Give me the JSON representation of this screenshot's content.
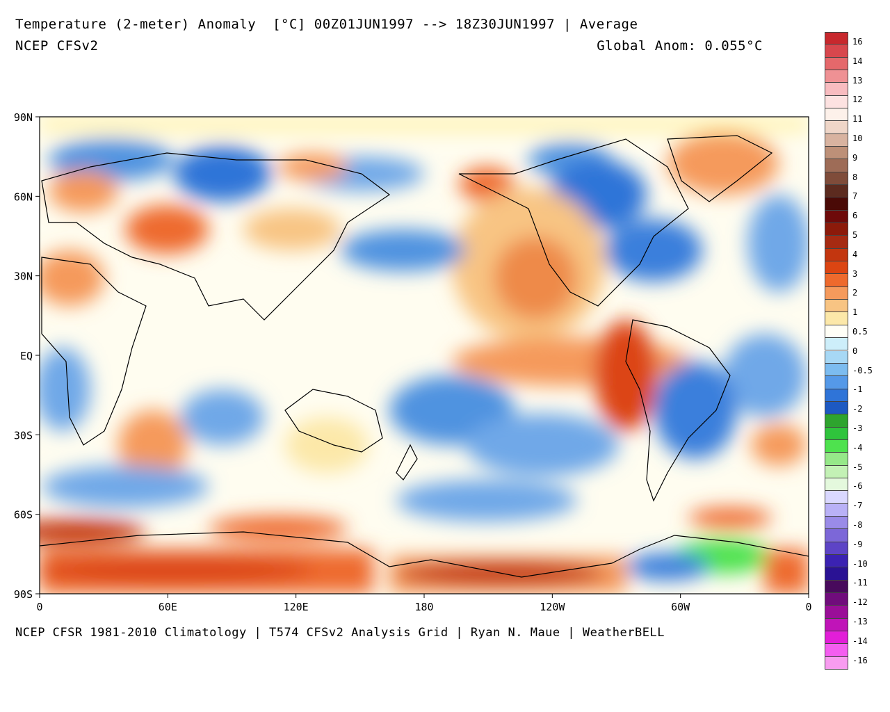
{
  "header": {
    "title": "Temperature (2-meter) Anomaly  [°C] 00Z01JUN1997 --> 18Z30JUN1997 | Average",
    "subtitle": "NCEP CFSv2",
    "global_anom": "Global Anom: 0.055°C"
  },
  "footer": {
    "text": "NCEP CFSR 1981-2010 Climatology | T574 CFSv2 Analysis Grid | Ryan N. Maue | WeatherBELL"
  },
  "map": {
    "lat_ticks": [
      {
        "label": "90N",
        "value": 90
      },
      {
        "label": "60N",
        "value": 60
      },
      {
        "label": "30N",
        "value": 30
      },
      {
        "label": "EQ",
        "value": 0
      },
      {
        "label": "30S",
        "value": -30
      },
      {
        "label": "60S",
        "value": -60
      },
      {
        "label": "90S",
        "value": -90
      }
    ],
    "lon_ticks": [
      {
        "label": "0",
        "value": 0
      },
      {
        "label": "60E",
        "value": 60
      },
      {
        "label": "120E",
        "value": 120
      },
      {
        "label": "180",
        "value": 180
      },
      {
        "label": "120W",
        "value": 240
      },
      {
        "label": "60W",
        "value": 300
      },
      {
        "label": "0",
        "value": 360
      }
    ],
    "colors": {
      "ocean_neutral": "#fffbe6",
      "warm": "#f4a582",
      "cool": "#6fa8e8",
      "coastline": "#000000"
    }
  },
  "legend": {
    "labels": [
      "16",
      "14",
      "13",
      "12",
      "11",
      "10",
      "9",
      "8",
      "7",
      "6",
      "5",
      "4",
      "3",
      "2",
      "1",
      "0.5",
      "0",
      "-0.5",
      "-1",
      "-2",
      "-3",
      "-4",
      "-5",
      "-6",
      "-7",
      "-8",
      "-9",
      "-10",
      "-11",
      "-12",
      "-13",
      "-14",
      "-16"
    ],
    "colors": [
      "#c8282d",
      "#d8474d",
      "#e5686b",
      "#ef9194",
      "#f8bcc0",
      "#fde2e1",
      "#fdf1ea",
      "#efd6c8",
      "#d8b3a0",
      "#bd9078",
      "#9e6c57",
      "#7f4c3a",
      "#5c2b1f",
      "#4a0a06",
      "#6e0a0a",
      "#8c1a0a",
      "#a62a12",
      "#c3360f",
      "#dc4512",
      "#ee6a2d",
      "#f59a5c",
      "#f8c483",
      "#fce8a9",
      "#fffef6",
      "#cdeefa",
      "#a7d8f5",
      "#7cbcf0",
      "#5599e8",
      "#2f74d8",
      "#1d59c2",
      "#2ea42e",
      "#2fc43c",
      "#4ee24e",
      "#96e889",
      "#c3f1b5",
      "#e4f9dd",
      "#dad8ff",
      "#b9b1f6",
      "#9a8be8",
      "#7c67d8",
      "#5d44c6",
      "#3b22b2",
      "#2a1294",
      "#480a5c",
      "#700c7c",
      "#9a0e98",
      "#c014b8",
      "#e21ed8",
      "#f45ef0",
      "#f89cf0"
    ]
  }
}
